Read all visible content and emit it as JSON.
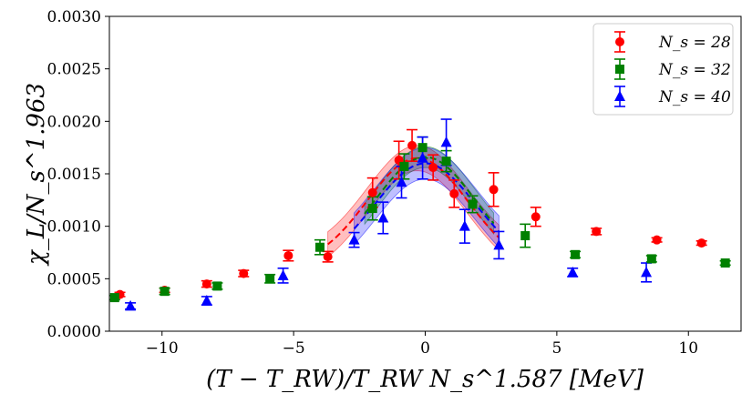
{
  "chart_data": {
    "type": "scatter",
    "title": "",
    "xlabel": "(T − T_RW)/T_RW N_s^1.587 [MeV]",
    "ylabel": "χ_L/N_s^1.963",
    "xlim": [
      -12,
      12
    ],
    "ylim": [
      0,
      0.003
    ],
    "xticks": [
      -10,
      -5,
      0,
      5,
      10
    ],
    "xtick_labels": [
      "−10",
      "−5",
      "0",
      "5",
      "10"
    ],
    "yticks": [
      0,
      0.0005,
      0.001,
      0.0015,
      0.002,
      0.0025,
      0.003
    ],
    "ytick_labels": [
      "0.0000",
      "0.0005",
      "0.0010",
      "0.0015",
      "0.0020",
      "0.0025",
      "0.0030"
    ],
    "legend_position": "top-right",
    "series": [
      {
        "name": "N_s = 28",
        "color": "#ff0000",
        "marker": "circle",
        "points": [
          {
            "x": -11.6,
            "y": 0.00035,
            "err": 2e-05
          },
          {
            "x": -9.9,
            "y": 0.00039,
            "err": 2e-05
          },
          {
            "x": -8.3,
            "y": 0.00045,
            "err": 3e-05
          },
          {
            "x": -6.9,
            "y": 0.00055,
            "err": 3e-05
          },
          {
            "x": -5.2,
            "y": 0.00072,
            "err": 5e-05
          },
          {
            "x": -3.7,
            "y": 0.00071,
            "err": 5e-05
          },
          {
            "x": -2.0,
            "y": 0.00132,
            "err": 0.00014
          },
          {
            "x": -1.0,
            "y": 0.00163,
            "err": 0.00018
          },
          {
            "x": -0.5,
            "y": 0.00177,
            "err": 0.00015
          },
          {
            "x": 0.3,
            "y": 0.00156,
            "err": 0.00012
          },
          {
            "x": 1.1,
            "y": 0.00131,
            "err": 0.00013
          },
          {
            "x": 2.6,
            "y": 0.00135,
            "err": 0.00016
          },
          {
            "x": 4.2,
            "y": 0.00109,
            "err": 9e-05
          },
          {
            "x": 6.5,
            "y": 0.00095,
            "err": 3e-05
          },
          {
            "x": 8.8,
            "y": 0.00087,
            "err": 2e-05
          },
          {
            "x": 10.5,
            "y": 0.00084,
            "err": 2e-05
          }
        ],
        "fit_band": {
          "x_from": -3.7,
          "x_to": 2.8,
          "peak_x": -0.3,
          "peak_y": 0.00165,
          "band": 0.00012
        }
      },
      {
        "name": "N_s = 32",
        "color": "#008000",
        "marker": "square",
        "points": [
          {
            "x": -11.8,
            "y": 0.00032,
            "err": 2e-05
          },
          {
            "x": -9.9,
            "y": 0.00038,
            "err": 3e-05
          },
          {
            "x": -7.9,
            "y": 0.00043,
            "err": 3e-05
          },
          {
            "x": -5.9,
            "y": 0.0005,
            "err": 4e-05
          },
          {
            "x": -4.0,
            "y": 0.0008,
            "err": 7e-05
          },
          {
            "x": -2.0,
            "y": 0.00117,
            "err": 0.00011
          },
          {
            "x": -0.8,
            "y": 0.00157,
            "err": 0.00012
          },
          {
            "x": -0.1,
            "y": 0.00175,
            "err": 0.0001
          },
          {
            "x": 0.8,
            "y": 0.00162,
            "err": 0.0001
          },
          {
            "x": 1.8,
            "y": 0.00121,
            "err": 8e-05
          },
          {
            "x": 3.8,
            "y": 0.00091,
            "err": 0.00011
          },
          {
            "x": 5.7,
            "y": 0.00073,
            "err": 3e-05
          },
          {
            "x": 8.6,
            "y": 0.00069,
            "err": 3e-05
          },
          {
            "x": 11.4,
            "y": 0.00065,
            "err": 2e-05
          }
        ],
        "fit_band": {
          "x_from": -2.3,
          "x_to": 2.6,
          "peak_x": 0.0,
          "peak_y": 0.00166,
          "band": 0.0001
        }
      },
      {
        "name": "N_s = 40",
        "color": "#0000ff",
        "marker": "triangle",
        "points": [
          {
            "x": -11.2,
            "y": 0.00024,
            "err": 3e-05
          },
          {
            "x": -8.3,
            "y": 0.00029,
            "err": 4e-05
          },
          {
            "x": -5.4,
            "y": 0.00053,
            "err": 7e-05
          },
          {
            "x": -2.7,
            "y": 0.00087,
            "err": 7e-05
          },
          {
            "x": -1.6,
            "y": 0.00108,
            "err": 0.00015
          },
          {
            "x": -0.9,
            "y": 0.00142,
            "err": 0.00015
          },
          {
            "x": -0.1,
            "y": 0.00165,
            "err": 0.0002
          },
          {
            "x": 0.8,
            "y": 0.0018,
            "err": 0.00022
          },
          {
            "x": 1.5,
            "y": 0.001,
            "err": 0.00016
          },
          {
            "x": 2.8,
            "y": 0.00082,
            "err": 0.00013
          },
          {
            "x": 5.6,
            "y": 0.00056,
            "err": 4e-05
          },
          {
            "x": 8.4,
            "y": 0.00056,
            "err": 9e-05
          }
        ],
        "fit_band": {
          "x_from": -2.7,
          "x_to": 2.8,
          "peak_x": 0.0,
          "peak_y": 0.0016,
          "band": 0.00015
        }
      }
    ]
  }
}
